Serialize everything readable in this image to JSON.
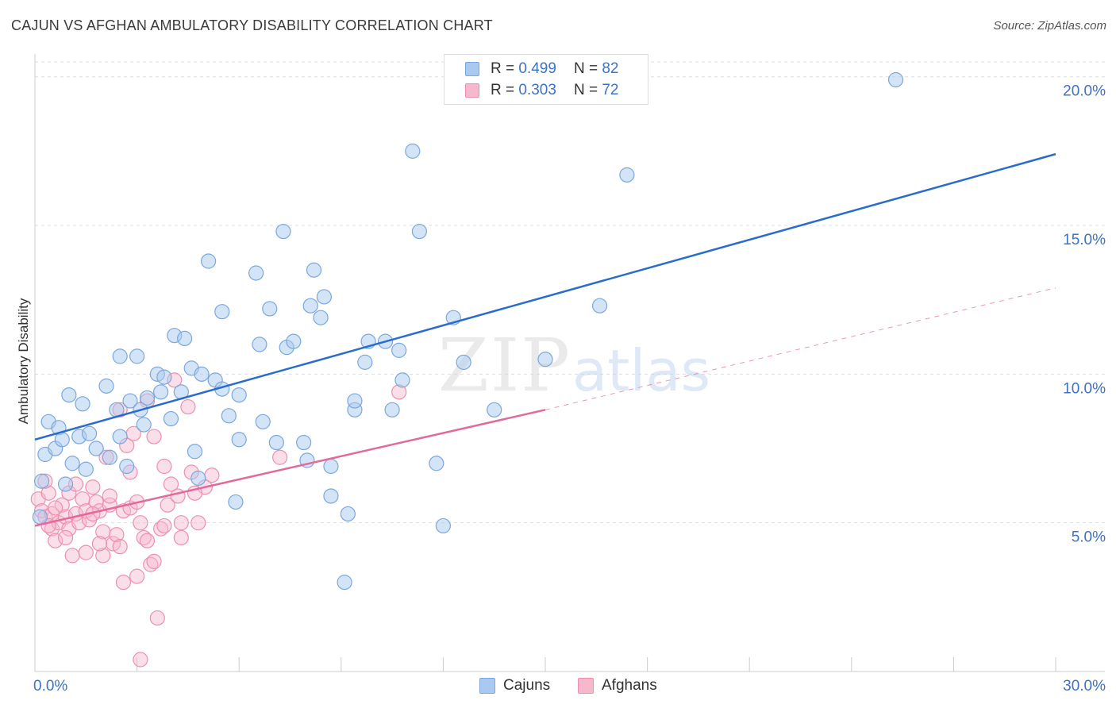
{
  "header": {
    "title": "CAJUN VS AFGHAN AMBULATORY DISABILITY CORRELATION CHART",
    "source": "Source: ZipAtlas.com"
  },
  "watermark": {
    "zip": "ZIP",
    "atlas": "atlas"
  },
  "legend": {
    "cajuns": {
      "r_label": "R =",
      "r_value": "0.499",
      "n_label": "N =",
      "n_value": "82"
    },
    "afghans": {
      "r_label": "R =",
      "r_value": "0.303",
      "n_label": "N =",
      "n_value": "72"
    }
  },
  "colors": {
    "blue_fill": "#a9c9f0",
    "blue_stroke": "#7aa7e0",
    "blue_line": "#2a6ccc",
    "pink_fill": "#f7b8cc",
    "pink_stroke": "#ee8fae",
    "pink_line": "#e2699a",
    "tick_text": "#3a73c8",
    "grid": "#dddddd"
  },
  "chart_data": {
    "type": "scatter",
    "title": "CAJUN VS AFGHAN AMBULATORY DISABILITY CORRELATION CHART",
    "xlabel": "",
    "ylabel": "Ambulatory Disability",
    "xlim": [
      0,
      30
    ],
    "ylim": [
      0,
      20.5
    ],
    "x_tick_labels": [
      {
        "v": 0,
        "label": "0.0%"
      },
      {
        "v": 30,
        "label": "30.0%"
      }
    ],
    "x_minor_ticks": [
      3,
      6,
      9,
      12,
      15,
      18,
      21,
      24,
      27
    ],
    "y_ticks": [
      {
        "v": 5,
        "label": "5.0%"
      },
      {
        "v": 10,
        "label": "10.0%"
      },
      {
        "v": 15,
        "label": "15.0%"
      },
      {
        "v": 20,
        "label": "20.0%"
      }
    ],
    "series": [
      {
        "name": "Cajuns",
        "r": 0.499,
        "n": 82,
        "trend": {
          "x0": 0,
          "y0": 7.8,
          "x1": 30,
          "y1": 17.4
        },
        "points": [
          [
            0.2,
            6.4
          ],
          [
            0.3,
            7.3
          ],
          [
            0.4,
            8.4
          ],
          [
            0.6,
            7.5
          ],
          [
            0.7,
            8.2
          ],
          [
            0.8,
            7.8
          ],
          [
            1.0,
            9.3
          ],
          [
            1.1,
            7.0
          ],
          [
            1.3,
            7.9
          ],
          [
            1.4,
            9.0
          ],
          [
            1.5,
            6.8
          ],
          [
            1.6,
            8.0
          ],
          [
            1.8,
            7.5
          ],
          [
            2.1,
            9.6
          ],
          [
            2.2,
            7.2
          ],
          [
            2.4,
            8.8
          ],
          [
            2.5,
            10.6
          ],
          [
            2.5,
            7.9
          ],
          [
            2.8,
            9.1
          ],
          [
            3.0,
            10.6
          ],
          [
            3.1,
            8.8
          ],
          [
            3.2,
            8.3
          ],
          [
            3.3,
            9.2
          ],
          [
            3.6,
            10.0
          ],
          [
            3.7,
            9.4
          ],
          [
            3.8,
            9.9
          ],
          [
            4.0,
            8.5
          ],
          [
            4.1,
            11.3
          ],
          [
            4.3,
            9.4
          ],
          [
            4.4,
            11.2
          ],
          [
            4.6,
            10.2
          ],
          [
            4.8,
            6.5
          ],
          [
            4.9,
            10.0
          ],
          [
            5.1,
            13.8
          ],
          [
            5.3,
            9.8
          ],
          [
            5.5,
            12.1
          ],
          [
            5.5,
            9.5
          ],
          [
            5.7,
            8.6
          ],
          [
            5.9,
            5.7
          ],
          [
            6.0,
            9.3
          ],
          [
            6.0,
            7.8
          ],
          [
            6.5,
            13.4
          ],
          [
            6.6,
            11.0
          ],
          [
            6.9,
            12.2
          ],
          [
            7.1,
            7.7
          ],
          [
            7.3,
            14.8
          ],
          [
            7.4,
            10.9
          ],
          [
            7.6,
            11.1
          ],
          [
            7.9,
            7.7
          ],
          [
            8.0,
            7.1
          ],
          [
            8.1,
            12.3
          ],
          [
            8.2,
            13.5
          ],
          [
            8.4,
            11.9
          ],
          [
            8.5,
            12.6
          ],
          [
            8.7,
            6.9
          ],
          [
            8.7,
            5.9
          ],
          [
            9.1,
            3.0
          ],
          [
            9.2,
            5.3
          ],
          [
            9.4,
            8.8
          ],
          [
            9.7,
            10.4
          ],
          [
            9.8,
            11.1
          ],
          [
            10.3,
            11.1
          ],
          [
            10.5,
            8.8
          ],
          [
            10.7,
            10.8
          ],
          [
            10.8,
            9.8
          ],
          [
            11.1,
            17.5
          ],
          [
            11.3,
            14.8
          ],
          [
            11.8,
            7.0
          ],
          [
            12.0,
            4.9
          ],
          [
            12.3,
            11.9
          ],
          [
            12.6,
            10.4
          ],
          [
            13.5,
            8.8
          ],
          [
            15.0,
            10.5
          ],
          [
            16.6,
            12.3
          ],
          [
            17.4,
            16.7
          ],
          [
            25.3,
            19.9
          ],
          [
            0.15,
            5.2
          ],
          [
            0.9,
            6.3
          ],
          [
            2.7,
            6.9
          ],
          [
            4.7,
            7.4
          ],
          [
            6.7,
            8.4
          ],
          [
            9.4,
            9.1
          ]
        ]
      },
      {
        "name": "Afghans",
        "r": 0.303,
        "n": 72,
        "trend": {
          "x0": 0,
          "y0": 4.9,
          "x1": 15,
          "y1": 8.8
        },
        "trend_ext": {
          "x0": 15,
          "y0": 8.8,
          "x1": 30,
          "y1": 12.9
        },
        "points": [
          [
            0.1,
            5.8
          ],
          [
            0.2,
            5.4
          ],
          [
            0.3,
            5.2
          ],
          [
            0.4,
            6.0
          ],
          [
            0.5,
            5.3
          ],
          [
            0.5,
            4.8
          ],
          [
            0.6,
            4.4
          ],
          [
            0.7,
            5.0
          ],
          [
            0.8,
            5.6
          ],
          [
            0.9,
            5.2
          ],
          [
            1.0,
            4.8
          ],
          [
            1.0,
            6.0
          ],
          [
            1.1,
            3.9
          ],
          [
            1.2,
            5.3
          ],
          [
            1.3,
            5.0
          ],
          [
            1.4,
            5.8
          ],
          [
            1.5,
            5.4
          ],
          [
            1.6,
            5.1
          ],
          [
            1.7,
            6.2
          ],
          [
            1.8,
            5.7
          ],
          [
            1.9,
            5.4
          ],
          [
            2.0,
            4.7
          ],
          [
            2.0,
            3.9
          ],
          [
            2.1,
            7.2
          ],
          [
            2.2,
            5.6
          ],
          [
            2.3,
            4.3
          ],
          [
            2.4,
            4.6
          ],
          [
            2.5,
            8.8
          ],
          [
            2.6,
            3.0
          ],
          [
            2.6,
            5.4
          ],
          [
            2.7,
            7.6
          ],
          [
            2.8,
            5.5
          ],
          [
            2.9,
            8.0
          ],
          [
            3.0,
            3.2
          ],
          [
            3.1,
            5.0
          ],
          [
            3.1,
            0.4
          ],
          [
            3.2,
            4.5
          ],
          [
            3.3,
            9.1
          ],
          [
            3.4,
            3.6
          ],
          [
            3.5,
            7.9
          ],
          [
            3.6,
            1.8
          ],
          [
            3.7,
            4.8
          ],
          [
            3.8,
            4.9
          ],
          [
            3.9,
            5.6
          ],
          [
            4.0,
            6.3
          ],
          [
            4.1,
            9.8
          ],
          [
            4.2,
            5.9
          ],
          [
            4.3,
            4.5
          ],
          [
            4.5,
            8.9
          ],
          [
            4.6,
            6.7
          ],
          [
            4.8,
            5.0
          ],
          [
            5.0,
            6.2
          ],
          [
            5.2,
            6.6
          ],
          [
            7.2,
            7.2
          ],
          [
            10.7,
            9.4
          ],
          [
            0.3,
            6.4
          ],
          [
            0.9,
            4.5
          ],
          [
            1.5,
            4.0
          ],
          [
            2.8,
            6.7
          ],
          [
            3.5,
            3.7
          ],
          [
            4.3,
            5.0
          ],
          [
            0.6,
            5.5
          ],
          [
            1.2,
            6.3
          ],
          [
            2.2,
            5.9
          ],
          [
            3.8,
            6.9
          ],
          [
            0.4,
            4.9
          ],
          [
            1.7,
            5.3
          ],
          [
            2.5,
            4.2
          ],
          [
            3.0,
            5.7
          ],
          [
            3.3,
            4.4
          ],
          [
            4.7,
            6.0
          ],
          [
            1.9,
            4.3
          ]
        ]
      }
    ]
  },
  "bottom_legend": {
    "cajuns_label": "Cajuns",
    "afghans_label": "Afghans"
  }
}
